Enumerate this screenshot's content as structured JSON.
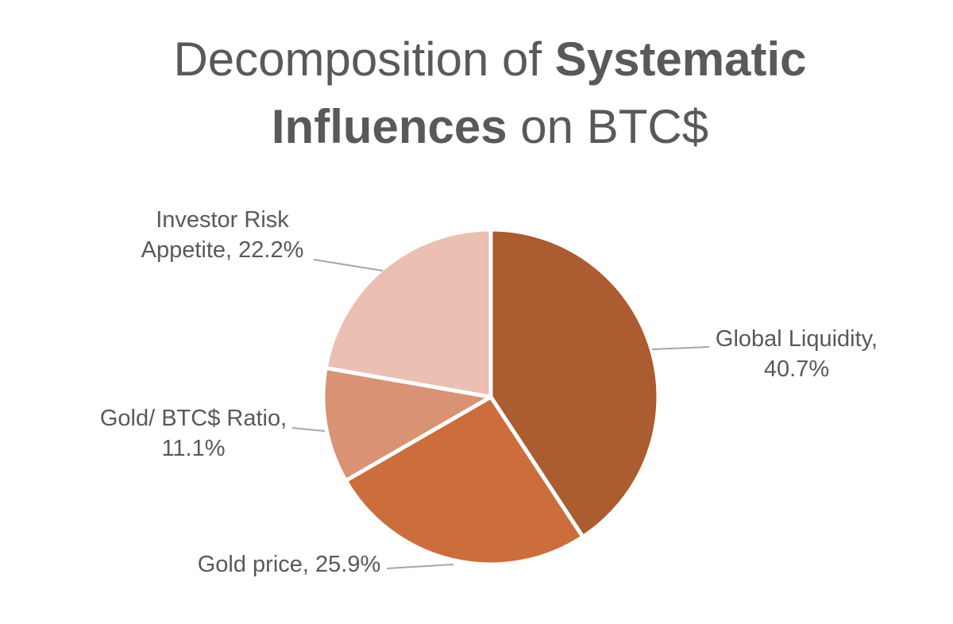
{
  "title": {
    "full": "Decomposition of Systematic Influences on BTC$",
    "line1": {
      "normal": "Decomposition of ",
      "bold": "Systematic"
    },
    "line2": {
      "bold": "Influences",
      "normal": " on BTC$"
    },
    "color": "#595959"
  },
  "chart_data": {
    "type": "pie",
    "title": "Decomposition of Systematic Influences on BTC$",
    "start_angle_deg": 0,
    "direction": "clockwise",
    "label_format": "{label}, {value}%",
    "label_color": "#595959",
    "leader_line_color": "#A6A6A6",
    "slice_border_color": "#FFFFFF",
    "background": "#FFFFFF",
    "slices": [
      {
        "label": "Global Liquidity",
        "value_pct": 40.7,
        "color": "#AB5C30"
      },
      {
        "label": "Gold price",
        "value_pct": 25.9,
        "color": "#CC6E3C"
      },
      {
        "label": "Gold/ BTC$ Ratio",
        "value_pct": 11.1,
        "color": "#D99273"
      },
      {
        "label": "Investor Risk Appetite",
        "value_pct": 22.2,
        "color": "#EBBFB2"
      }
    ]
  }
}
